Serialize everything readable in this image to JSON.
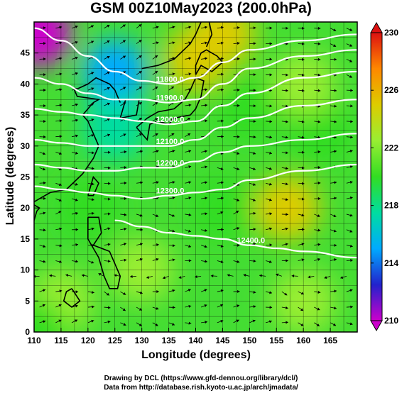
{
  "chart_data": {
    "type": "heatmap",
    "title": "GSM 00Z10May2023 (200.0hPa)",
    "xlabel": "Longitude (degrees)",
    "ylabel": "Latitude  (degrees)",
    "xlim": [
      110,
      170
    ],
    "ylim": [
      0,
      50
    ],
    "xticks": [
      "110",
      "115",
      "120",
      "125",
      "130",
      "135",
      "140",
      "145",
      "150",
      "155",
      "160",
      "165"
    ],
    "yticks": [
      "0",
      "5",
      "10",
      "15",
      "20",
      "25",
      "30",
      "35",
      "40",
      "45"
    ],
    "grid": true,
    "colorbar": {
      "min": 210,
      "max": 230,
      "ticks": [
        "210",
        "214",
        "218",
        "222",
        "226",
        "230"
      ],
      "colors": [
        "#cc00cc",
        "#2222cc",
        "#00aaff",
        "#00dda0",
        "#33dd22",
        "#99ee33",
        "#ddcc00",
        "#ff8800",
        "#dd1111"
      ]
    },
    "contours": [
      {
        "label": "11800.0",
        "lat_at_lon": [
          [
            110,
            49
          ],
          [
            115,
            47
          ],
          [
            120,
            44.5
          ],
          [
            125,
            42
          ],
          [
            130,
            40.5
          ],
          [
            135,
            40
          ],
          [
            140,
            41
          ],
          [
            145,
            43.5
          ],
          [
            150,
            45.5
          ],
          [
            160,
            47
          ],
          [
            170,
            48
          ]
        ]
      },
      {
        "label": "11900.0",
        "lat_at_lon": [
          [
            110,
            41
          ],
          [
            115,
            40
          ],
          [
            120,
            38.5
          ],
          [
            125,
            37.5
          ],
          [
            130,
            37.5
          ],
          [
            135,
            37
          ],
          [
            140,
            37.5
          ],
          [
            145,
            40
          ],
          [
            150,
            42.5
          ],
          [
            160,
            44.5
          ],
          [
            170,
            45.5
          ]
        ]
      },
      {
        "label": "12000.0",
        "lat_at_lon": [
          [
            110,
            36
          ],
          [
            115,
            35.5
          ],
          [
            120,
            35
          ],
          [
            125,
            34.5
          ],
          [
            130,
            34
          ],
          [
            135,
            33.5
          ],
          [
            140,
            34
          ],
          [
            145,
            36.5
          ],
          [
            150,
            38.5
          ],
          [
            160,
            41
          ],
          [
            170,
            42
          ]
        ]
      },
      {
        "label": "12100.0",
        "lat_at_lon": [
          [
            110,
            31
          ],
          [
            115,
            30.5
          ],
          [
            120,
            30
          ],
          [
            125,
            30
          ],
          [
            130,
            30
          ],
          [
            135,
            30
          ],
          [
            140,
            31
          ],
          [
            145,
            33
          ],
          [
            150,
            34.5
          ],
          [
            160,
            36.5
          ],
          [
            170,
            37.5
          ]
        ]
      },
      {
        "label": "12200.0",
        "lat_at_lon": [
          [
            110,
            27
          ],
          [
            115,
            26.5
          ],
          [
            120,
            26
          ],
          [
            125,
            26
          ],
          [
            130,
            26.5
          ],
          [
            135,
            26.5
          ],
          [
            140,
            27.5
          ],
          [
            145,
            29
          ],
          [
            150,
            30
          ],
          [
            160,
            31
          ],
          [
            170,
            32
          ]
        ]
      },
      {
        "label": "12300.0",
        "lat_at_lon": [
          [
            110,
            23.5
          ],
          [
            115,
            23
          ],
          [
            120,
            22.5
          ],
          [
            125,
            22
          ],
          [
            130,
            21.5
          ],
          [
            135,
            22
          ],
          [
            140,
            22.5
          ],
          [
            145,
            23
          ],
          [
            150,
            24.5
          ],
          [
            160,
            26
          ],
          [
            170,
            27
          ]
        ]
      },
      {
        "label": "12400.0",
        "lat_at_lon": [
          [
            125,
            18
          ],
          [
            130,
            17
          ],
          [
            135,
            16
          ],
          [
            140,
            15.5
          ],
          [
            145,
            15
          ],
          [
            150,
            14
          ],
          [
            155,
            13.5
          ],
          [
            160,
            13
          ],
          [
            170,
            12
          ]
        ]
      }
    ],
    "temperature_blobs": [
      {
        "lon": 111,
        "lat": 48,
        "value": 211
      },
      {
        "lon": 125,
        "lat": 42,
        "value": 214
      },
      {
        "lon": 145,
        "lat": 48,
        "value": 226
      },
      {
        "lon": 140,
        "lat": 44,
        "value": 225
      },
      {
        "lon": 125,
        "lat": 33,
        "value": 217
      },
      {
        "lon": 150,
        "lat": 36,
        "value": 219
      },
      {
        "lon": 163,
        "lat": 32,
        "value": 219
      },
      {
        "lon": 160,
        "lat": 40,
        "value": 222
      },
      {
        "lon": 157,
        "lat": 20,
        "value": 225
      },
      {
        "lon": 145,
        "lat": 20,
        "value": 221
      },
      {
        "lon": 130,
        "lat": 10,
        "value": 223
      },
      {
        "lon": 120,
        "lat": 20,
        "value": 221
      },
      {
        "lon": 115,
        "lat": 5,
        "value": 223
      },
      {
        "lon": 160,
        "lat": 5,
        "value": 222
      },
      {
        "lon": 110,
        "lat": 0,
        "value": 220
      }
    ]
  },
  "credits": {
    "line1": "Drawing by DCL (https://www.gfd-dennou.org/library/dcl/)",
    "line2": "Data from http://database.rish.kyoto-u.ac.jp/arch/jmadata/"
  }
}
